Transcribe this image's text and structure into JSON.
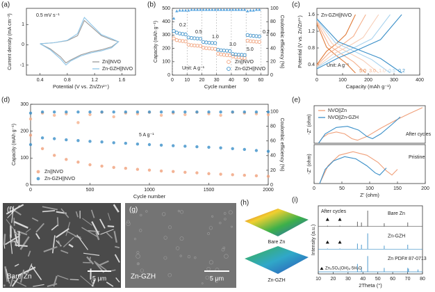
{
  "chart_data": [
    {
      "type": "line",
      "panel": "(a)",
      "xlabel": "Potential (V vs. Zn/Zn²⁺)",
      "ylabel": "Current density (mA cm⁻²)",
      "annotations": [
        "0.5 mV s⁻¹"
      ],
      "legend": "lower right",
      "xlim": [
        0.2,
        1.8
      ],
      "xticks": [
        0.4,
        0.8,
        1.2,
        1.6
      ],
      "ylim": [
        -1.5,
        1.8
      ],
      "yticks": [
        -1,
        0,
        1
      ],
      "series": [
        {
          "name": "Zn||NVO",
          "color": "#9a9a9a",
          "x": [
            0.4,
            0.6,
            0.8,
            0.95,
            1.05,
            1.15,
            1.3,
            1.45,
            1.55,
            1.45,
            1.3,
            1.15,
            1.0,
            0.85,
            0.78,
            0.7,
            0.55,
            0.4
          ],
          "values": [
            0.05,
            0.1,
            0.2,
            0.45,
            1.2,
            0.9,
            0.45,
            0.25,
            0.15,
            -0.1,
            -0.25,
            -0.35,
            -0.5,
            -0.75,
            -0.9,
            -0.6,
            -0.2,
            0.05
          ]
        },
        {
          "name": "Zn-GZH||NVO",
          "color": "#8ec5e8",
          "x": [
            0.4,
            0.6,
            0.8,
            0.95,
            1.05,
            1.15,
            1.3,
            1.45,
            1.55,
            1.45,
            1.3,
            1.15,
            1.0,
            0.85,
            0.78,
            0.7,
            0.55,
            0.4
          ],
          "values": [
            0.05,
            0.1,
            0.22,
            0.55,
            1.35,
            1.0,
            0.5,
            0.3,
            0.15,
            -0.15,
            -0.3,
            -0.4,
            -0.55,
            -0.8,
            -1.0,
            -0.7,
            -0.25,
            0.05
          ]
        }
      ]
    },
    {
      "type": "scatter",
      "panel": "(b)",
      "xlabel": "Cycle number",
      "ylabel": "Capacity (mAh g⁻¹)",
      "y2label": "Coulombic efficiency (%)",
      "annotations": [
        "0.2",
        "0.5",
        "1.0",
        "3.0",
        "5.0",
        "0.2",
        "Unit: A g⁻¹"
      ],
      "legend": "lower right",
      "grid": "x",
      "xlim": [
        0,
        65
      ],
      "xticks": [
        0,
        10,
        20,
        30,
        40,
        50,
        60
      ],
      "ylim": [
        0,
        500
      ],
      "yticks": [
        0,
        100,
        200,
        300,
        400,
        500
      ],
      "y2lim": [
        0,
        100
      ],
      "y2ticks": [
        0,
        20,
        40,
        60,
        80,
        100
      ],
      "x": [
        1,
        3,
        5,
        7,
        9,
        11,
        13,
        15,
        17,
        19,
        21,
        23,
        25,
        27,
        29,
        31,
        33,
        35,
        37,
        39,
        41,
        43,
        45,
        47,
        49,
        51,
        53,
        55,
        57,
        59
      ],
      "series": [
        {
          "name": "Zn||NVO",
          "color": "#f0a07a",
          "marker": "circle-open",
          "values": [
            275,
            262,
            258,
            255,
            252,
            228,
            224,
            222,
            220,
            218,
            205,
            202,
            200,
            198,
            196,
            160,
            155,
            152,
            150,
            148,
            140,
            135,
            132,
            130,
            128,
            258,
            254,
            252,
            250,
            248
          ]
        },
        {
          "name": "Zn-GZH||NVO",
          "color": "#3a8fc8",
          "marker": "circle-open",
          "values": [
            330,
            318,
            312,
            308,
            305,
            282,
            278,
            276,
            274,
            272,
            248,
            245,
            243,
            241,
            240,
            190,
            186,
            184,
            182,
            180,
            158,
            155,
            153,
            152,
            150,
            300,
            296,
            294,
            292,
            290
          ]
        },
        {
          "color": "#5aa6e0",
          "marker": "triangle",
          "axis": "y2",
          "values": [
            85,
            96,
            97,
            97,
            97,
            97,
            98,
            98,
            98,
            98,
            98,
            98,
            98,
            98,
            98,
            98,
            98,
            98,
            98,
            98,
            98,
            98,
            98,
            98,
            98,
            96,
            97,
            97,
            98,
            98
          ]
        }
      ]
    },
    {
      "type": "line",
      "panel": "(c)",
      "xlabel": "Capacity (mAh g⁻¹)",
      "ylabel": "Potential (V vs. Zn/Zn²⁺)",
      "annotations": [
        "Zn-GZH||NVO",
        "Unit: A g⁻¹"
      ],
      "legend": "lower center",
      "xlim": [
        0,
        400
      ],
      "xticks": [
        0,
        100,
        200,
        300,
        400
      ],
      "ylim": [
        0.15,
        1.75
      ],
      "yticks": [
        0.4,
        0.8,
        1.2,
        1.6
      ],
      "series": [
        {
          "name": "5.0",
          "color": "#e07b39",
          "x": [
            0,
            37.5,
            75,
            112.5,
            150,
            null,
            0,
            37.5,
            75,
            112.5,
            150
          ],
          "values": [
            0.4,
            0.72,
            0.9,
            1.12,
            1.6,
            null,
            1.38,
            0.82,
            0.62,
            0.44,
            0.2
          ]
        },
        {
          "name": "3.0",
          "color": "#f5b08c",
          "x": [
            0,
            47.5,
            95,
            142.5,
            190,
            null,
            0,
            47.5,
            95,
            142.5,
            190
          ],
          "values": [
            0.38,
            0.68,
            0.86,
            1.08,
            1.6,
            null,
            1.42,
            0.86,
            0.66,
            0.47,
            0.2
          ]
        },
        {
          "name": "1.0",
          "color": "#f7cdb6",
          "x": [
            0,
            60,
            120,
            180,
            240,
            null,
            0,
            60,
            120,
            180,
            240
          ],
          "values": [
            0.35,
            0.64,
            0.83,
            1.05,
            1.6,
            null,
            1.45,
            0.9,
            0.7,
            0.5,
            0.2
          ]
        },
        {
          "name": "0.5",
          "color": "#a9d3ee",
          "x": [
            0,
            71.25,
            142.5,
            213.75,
            285,
            null,
            0,
            71.25,
            142.5,
            213.75,
            285
          ],
          "values": [
            0.33,
            0.6,
            0.8,
            1.02,
            1.6,
            null,
            1.48,
            0.93,
            0.73,
            0.52,
            0.2
          ]
        },
        {
          "name": "0.2",
          "color": "#3a8fc8",
          "x": [
            0,
            82.5,
            165,
            247.5,
            330,
            null,
            0,
            82.5,
            165,
            247.5,
            330
          ],
          "values": [
            0.3,
            0.56,
            0.77,
            1.0,
            1.6,
            null,
            1.5,
            0.95,
            0.75,
            0.55,
            0.2
          ]
        }
      ]
    },
    {
      "type": "scatter",
      "panel": "(d)",
      "xlabel": "Cycle number",
      "ylabel": "Capacity (mAh g⁻¹)",
      "y2label": "Coulombic efficiency (%)",
      "annotations": [
        "5 A g⁻¹"
      ],
      "legend": "lower left",
      "xlim": [
        0,
        2000
      ],
      "xticks": [
        0,
        500,
        1000,
        1500,
        2000
      ],
      "ylim": [
        0,
        300
      ],
      "yticks": [
        0,
        100,
        200,
        300
      ],
      "y2lim": [
        0,
        110
      ],
      "y2ticks": [
        0,
        20,
        40,
        60,
        80,
        100
      ],
      "x": [
        0,
        100,
        200,
        300,
        400,
        500,
        600,
        700,
        800,
        900,
        1000,
        1100,
        1200,
        1300,
        1400,
        1500,
        1600,
        1700,
        1800,
        1900,
        2000
      ],
      "series": [
        {
          "name": "Zn||NVO",
          "color": "#f0a07a",
          "marker": "circle",
          "values": [
            185,
            135,
            110,
            95,
            85,
            75,
            70,
            65,
            62,
            58,
            55,
            52,
            50,
            47,
            45,
            42,
            40,
            38,
            36,
            34,
            32
          ]
        },
        {
          "name": "Zn-GZH||NVO",
          "color": "#3a8fc8",
          "marker": "circle",
          "values": [
            150,
            175,
            172,
            168,
            165,
            162,
            160,
            157,
            155,
            152,
            150,
            148,
            146,
            144,
            142,
            140,
            138,
            135,
            132,
            128,
            125
          ]
        },
        {
          "color": "#f5b08c",
          "marker": "circle",
          "axis": "y2",
          "values": [
            90,
            98,
            95,
            97,
            85,
            96,
            99,
            93,
            98,
            97,
            99,
            95,
            98,
            96,
            99,
            97,
            95,
            99,
            98,
            97,
            96
          ]
        },
        {
          "color": "#3a8fc8",
          "marker": "circle",
          "axis": "y2",
          "values": [
            98,
            99.5,
            99.5,
            99.5,
            99.5,
            99.5,
            99.5,
            99.5,
            99.5,
            99.5,
            99.5,
            99.5,
            99.5,
            99.5,
            99.5,
            99.5,
            99.5,
            99.5,
            99.5,
            99.5,
            99.5
          ]
        }
      ]
    },
    {
      "type": "line",
      "panel": "(e)",
      "ylabel": "-Z'' (ohm)",
      "annotations": [
        "After cycles"
      ],
      "legend": "upper left",
      "xlim": [
        0,
        200
      ],
      "ylim": [
        0,
        100
      ],
      "yticks": [],
      "series": [
        {
          "name": "NVO||Zn",
          "color": "#f0a07a",
          "x": [
            8,
            15,
            25,
            40,
            55,
            68,
            78,
            95,
            120,
            145,
            170,
            195
          ],
          "values": [
            0,
            15,
            25,
            30,
            25,
            12,
            8,
            18,
            40,
            60,
            78,
            95
          ]
        },
        {
          "name": "NVO||Zn-GZH",
          "color": "#3a8fc8",
          "x": [
            8,
            20,
            40,
            60,
            80,
            95,
            105,
            120,
            140,
            155
          ],
          "values": [
            0,
            25,
            42,
            45,
            35,
            18,
            12,
            25,
            50,
            70
          ]
        }
      ]
    },
    {
      "type": "line",
      "xlabel": "Z' (ohm)",
      "ylabel": "-Z'' (ohm)",
      "annotations": [
        "Pristine"
      ],
      "xlim": [
        0,
        200
      ],
      "xticks": [
        0,
        50,
        100,
        150,
        200
      ],
      "ylim": [
        0,
        55
      ],
      "yticks": [],
      "series": [
        {
          "color": "#f0a07a",
          "x": [
            10,
            25,
            45,
            70,
            95,
            115,
            130,
            140,
            150
          ],
          "values": [
            0,
            25,
            40,
            45,
            40,
            30,
            18,
            12,
            20
          ]
        },
        {
          "color": "#3a8fc8",
          "x": [
            10,
            20,
            35,
            55,
            75,
            95,
            110,
            118,
            130
          ],
          "values": [
            0,
            20,
            32,
            38,
            35,
            25,
            15,
            12,
            22
          ]
        }
      ]
    },
    {
      "type": "stick",
      "panel": "(i)",
      "xlabel": "2Theta (°)",
      "ylabel": "Intensity (a.u.)",
      "annotations": [
        "After cycles"
      ],
      "legend": "inline",
      "triangle_label": "Zn₄SO₄(OH)₆·5H₂O",
      "xlim": [
        10,
        80
      ],
      "xticks": [
        10,
        20,
        30,
        40,
        50,
        60,
        70,
        80
      ],
      "ylim": [
        0,
        100
      ],
      "yticks": [],
      "series": [
        {
          "name": "Bare Zn",
          "color": "#555555",
          "x": [
            16.2,
            24.5,
            36.3,
            39.0,
            43.2,
            54.3,
            70.1
          ],
          "values": [
            5,
            5,
            30,
            25,
            100,
            20,
            25
          ],
          "triangle_x": [
            16.2,
            24.5
          ]
        },
        {
          "name": "Zn-GZH",
          "color": "#3a8fc8",
          "x": [
            16.2,
            24.5,
            36.3,
            39.0,
            43.2,
            54.3,
            70.1
          ],
          "values": [
            4,
            4,
            35,
            28,
            100,
            22,
            28
          ],
          "triangle_x": [
            16.2,
            24.5
          ]
        },
        {
          "name": "Zn PDF# 87-0713",
          "color": "#3a8fc8",
          "x": [
            36.3,
            39.0,
            43.2,
            54.3,
            70.1,
            70.6,
            77.0
          ],
          "values": [
            50,
            30,
            100,
            25,
            25,
            20,
            15
          ]
        }
      ]
    }
  ],
  "image_panels": [
    {
      "panel": "(f)",
      "label": "Bare Zn",
      "scale": "5 μm"
    },
    {
      "panel": "(g)",
      "label": "Zn-GZH",
      "scale": "5 μm"
    },
    {
      "panel": "(h)",
      "labels": [
        "Bare Zn",
        "Zn-GZH"
      ]
    }
  ]
}
